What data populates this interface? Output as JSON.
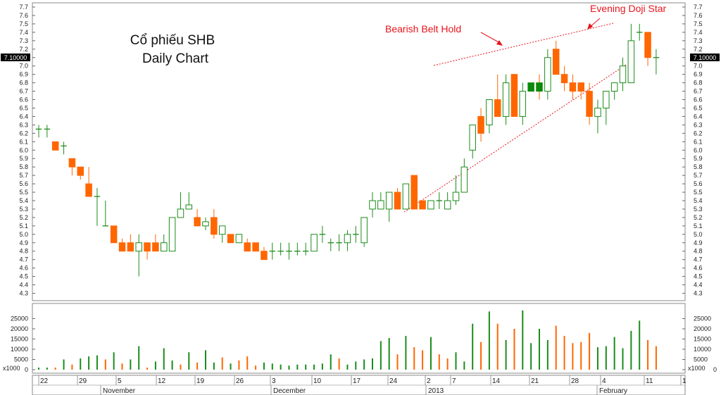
{
  "chart_data": [
    {
      "type": "candlestick",
      "title_line1": "Cổ phiếu SHB",
      "title_line2": "Daily Chart",
      "ylim": [
        4.2,
        7.75
      ],
      "y_ticks": [
        "4.3",
        "4.4",
        "4.5",
        "4.6",
        "4.7",
        "4.8",
        "4.9",
        "5.0",
        "5.1",
        "5.2",
        "5.3",
        "5.4",
        "5.5",
        "5.6",
        "5.7",
        "5.8",
        "5.9",
        "6.0",
        "6.1",
        "6.2",
        "6.3",
        "6.4",
        "6.5",
        "6.6",
        "6.7",
        "6.8",
        "6.9",
        "7.0",
        "7.1",
        "7.2",
        "7.3",
        "7.4",
        "7.5",
        "7.6",
        "7.7"
      ],
      "last_price_label": "7.10000",
      "last_price": 7.1,
      "colors": {
        "up": "#1a8c1a",
        "down": "#ff6600",
        "up_fill_special": "#0a8a0a",
        "annotation": "#e8141c"
      },
      "candles": [
        {
          "o": 6.25,
          "h": 6.3,
          "l": 6.15,
          "c": 6.25
        },
        {
          "o": 6.25,
          "h": 6.3,
          "l": 6.15,
          "c": 6.25
        },
        {
          "o": 6.1,
          "h": 6.1,
          "l": 6.0,
          "c": 6.0
        },
        {
          "o": 6.05,
          "h": 6.1,
          "l": 5.95,
          "c": 6.05
        },
        {
          "o": 5.9,
          "h": 5.9,
          "l": 5.7,
          "c": 5.8
        },
        {
          "o": 5.8,
          "h": 5.8,
          "l": 5.65,
          "c": 5.7
        },
        {
          "o": 5.6,
          "h": 5.8,
          "l": 5.45,
          "c": 5.45
        },
        {
          "o": 5.45,
          "h": 5.55,
          "l": 5.1,
          "c": 5.45
        },
        {
          "o": 5.1,
          "h": 5.4,
          "l": 5.1,
          "c": 5.1
        },
        {
          "o": 5.1,
          "h": 5.1,
          "l": 4.9,
          "c": 4.9
        },
        {
          "o": 4.9,
          "h": 4.95,
          "l": 4.8,
          "c": 4.8
        },
        {
          "o": 4.9,
          "h": 5.0,
          "l": 4.8,
          "c": 4.8
        },
        {
          "o": 4.8,
          "h": 5.0,
          "l": 4.5,
          "c": 4.9
        },
        {
          "o": 4.9,
          "h": 4.9,
          "l": 4.7,
          "c": 4.8
        },
        {
          "o": 4.9,
          "h": 5.0,
          "l": 4.8,
          "c": 4.8
        },
        {
          "o": 4.8,
          "h": 5.0,
          "l": 4.8,
          "c": 4.9
        },
        {
          "o": 4.8,
          "h": 5.2,
          "l": 4.8,
          "c": 5.2
        },
        {
          "o": 5.2,
          "h": 5.5,
          "l": 5.2,
          "c": 5.3
        },
        {
          "o": 5.3,
          "h": 5.5,
          "l": 5.3,
          "c": 5.35
        },
        {
          "o": 5.2,
          "h": 5.3,
          "l": 5.1,
          "c": 5.1
        },
        {
          "o": 5.1,
          "h": 5.2,
          "l": 5.05,
          "c": 5.15
        },
        {
          "o": 5.2,
          "h": 5.3,
          "l": 4.95,
          "c": 5.0
        },
        {
          "o": 5.0,
          "h": 5.1,
          "l": 4.9,
          "c": 5.1
        },
        {
          "o": 5.0,
          "h": 5.0,
          "l": 4.9,
          "c": 4.9
        },
        {
          "o": 4.9,
          "h": 5.0,
          "l": 4.9,
          "c": 5.0
        },
        {
          "o": 4.9,
          "h": 4.95,
          "l": 4.8,
          "c": 4.8
        },
        {
          "o": 4.9,
          "h": 4.9,
          "l": 4.8,
          "c": 4.8
        },
        {
          "o": 4.8,
          "h": 4.85,
          "l": 4.7,
          "c": 4.7
        },
        {
          "o": 4.8,
          "h": 4.9,
          "l": 4.7,
          "c": 4.8
        },
        {
          "o": 4.8,
          "h": 4.9,
          "l": 4.75,
          "c": 4.8
        },
        {
          "o": 4.8,
          "h": 4.9,
          "l": 4.7,
          "c": 4.8
        },
        {
          "o": 4.8,
          "h": 4.9,
          "l": 4.75,
          "c": 4.8
        },
        {
          "o": 4.8,
          "h": 4.9,
          "l": 4.75,
          "c": 4.8
        },
        {
          "o": 4.8,
          "h": 5.0,
          "l": 4.8,
          "c": 5.0
        },
        {
          "o": 5.0,
          "h": 5.1,
          "l": 4.9,
          "c": 5.0
        },
        {
          "o": 4.9,
          "h": 4.95,
          "l": 4.8,
          "c": 4.9
        },
        {
          "o": 4.9,
          "h": 5.0,
          "l": 4.8,
          "c": 4.9
        },
        {
          "o": 4.9,
          "h": 5.05,
          "l": 4.8,
          "c": 5.0
        },
        {
          "o": 5.0,
          "h": 5.1,
          "l": 4.9,
          "c": 5.0
        },
        {
          "o": 4.9,
          "h": 5.2,
          "l": 4.85,
          "c": 5.2
        },
        {
          "o": 5.3,
          "h": 5.5,
          "l": 5.2,
          "c": 5.4
        },
        {
          "o": 5.3,
          "h": 5.5,
          "l": 5.3,
          "c": 5.4
        },
        {
          "o": 5.3,
          "h": 5.5,
          "l": 5.15,
          "c": 5.5
        },
        {
          "o": 5.5,
          "h": 5.55,
          "l": 5.3,
          "c": 5.3
        },
        {
          "o": 5.3,
          "h": 5.6,
          "l": 5.3,
          "c": 5.6
        },
        {
          "o": 5.7,
          "h": 5.7,
          "l": 5.3,
          "c": 5.3
        },
        {
          "o": 5.4,
          "h": 5.4,
          "l": 5.3,
          "c": 5.3
        },
        {
          "o": 5.3,
          "h": 5.4,
          "l": 5.3,
          "c": 5.4
        },
        {
          "o": 5.4,
          "h": 5.5,
          "l": 5.3,
          "c": 5.4
        },
        {
          "o": 5.3,
          "h": 5.5,
          "l": 5.3,
          "c": 5.4
        },
        {
          "o": 5.4,
          "h": 5.7,
          "l": 5.35,
          "c": 5.5
        },
        {
          "o": 5.5,
          "h": 5.9,
          "l": 5.5,
          "c": 5.8
        },
        {
          "o": 6.0,
          "h": 6.3,
          "l": 5.9,
          "c": 6.3
        },
        {
          "o": 6.4,
          "h": 6.5,
          "l": 6.1,
          "c": 6.2
        },
        {
          "o": 6.3,
          "h": 6.6,
          "l": 6.2,
          "c": 6.6
        },
        {
          "o": 6.6,
          "h": 6.9,
          "l": 6.4,
          "c": 6.4
        },
        {
          "o": 6.4,
          "h": 6.9,
          "l": 6.3,
          "c": 6.8
        },
        {
          "o": 6.9,
          "h": 6.9,
          "l": 6.4,
          "c": 6.4
        },
        {
          "o": 6.4,
          "h": 6.8,
          "l": 6.3,
          "c": 6.7
        },
        {
          "o": 6.8,
          "h": 6.8,
          "l": 6.7,
          "c": 6.7,
          "solid": true
        },
        {
          "o": 6.8,
          "h": 6.9,
          "l": 6.6,
          "c": 6.7,
          "solid": true
        },
        {
          "o": 6.7,
          "h": 7.2,
          "l": 6.6,
          "c": 7.1
        },
        {
          "o": 7.2,
          "h": 7.3,
          "l": 6.9,
          "c": 6.9
        },
        {
          "o": 6.9,
          "h": 7.0,
          "l": 6.7,
          "c": 6.8
        },
        {
          "o": 6.8,
          "h": 6.9,
          "l": 6.6,
          "c": 6.7
        },
        {
          "o": 6.8,
          "h": 6.8,
          "l": 6.6,
          "c": 6.7
        },
        {
          "o": 6.7,
          "h": 6.8,
          "l": 6.3,
          "c": 6.4
        },
        {
          "o": 6.4,
          "h": 6.6,
          "l": 6.2,
          "c": 6.5
        },
        {
          "o": 6.5,
          "h": 6.7,
          "l": 6.3,
          "c": 6.7
        },
        {
          "o": 6.7,
          "h": 6.8,
          "l": 6.6,
          "c": 6.8
        },
        {
          "o": 6.8,
          "h": 7.1,
          "l": 6.7,
          "c": 7.0
        },
        {
          "o": 6.8,
          "h": 7.5,
          "l": 6.8,
          "c": 7.3
        },
        {
          "o": 7.4,
          "h": 7.5,
          "l": 7.3,
          "c": 7.4
        },
        {
          "o": 7.4,
          "h": 7.4,
          "l": 7.0,
          "c": 7.1
        },
        {
          "o": 7.1,
          "h": 7.2,
          "l": 6.9,
          "c": 7.1
        }
      ],
      "volume_axis_ticks": [
        "0",
        "5000",
        "10000",
        "15000",
        "20000",
        "25000"
      ],
      "volume_unit_label": "x1000",
      "volume": [
        1000,
        1000,
        1000,
        5000,
        2500,
        5500,
        6500,
        7000,
        5000,
        8500,
        3000,
        5000,
        11500,
        1000,
        4000,
        10500,
        4500,
        2500,
        8500,
        3500,
        9500,
        3500,
        6000,
        3000,
        4500,
        6500,
        2000,
        3500,
        3000,
        2500,
        2000,
        2500,
        2500,
        2500,
        3000,
        7500,
        5500,
        2500,
        4000,
        5000,
        5500,
        14000,
        15500,
        7500,
        16500,
        11000,
        9500,
        16000,
        7500,
        5500,
        8500,
        4000,
        22500,
        13500,
        28500,
        22500,
        14500,
        20000,
        29000,
        13000,
        20000,
        14500,
        21500,
        16500,
        13000,
        13500,
        18000,
        11000,
        11500,
        16000,
        10500,
        19000,
        24000,
        14500,
        11500
      ],
      "volume_directions": [
        "up",
        "up",
        "down",
        "up",
        "down",
        "up",
        "up",
        "up",
        "down",
        "up",
        "down",
        "up",
        "up",
        "down",
        "up",
        "up",
        "up",
        "down",
        "up",
        "down",
        "up",
        "up",
        "down",
        "up",
        "down",
        "down",
        "down",
        "up",
        "up",
        "up",
        "up",
        "up",
        "up",
        "up",
        "up",
        "up",
        "down",
        "up",
        "up",
        "up",
        "up",
        "up",
        "up",
        "down",
        "up",
        "down",
        "down",
        "up",
        "down",
        "down",
        "up",
        "up",
        "up",
        "down",
        "up",
        "down",
        "up",
        "down",
        "up",
        "up",
        "up",
        "up",
        "down",
        "down",
        "down",
        "down",
        "down",
        "up",
        "up",
        "up",
        "up",
        "up",
        "up",
        "down",
        "down"
      ],
      "x_tick_labels": [
        "22",
        "29",
        "5",
        "12",
        "19",
        "26",
        "3",
        "10",
        "17",
        "24",
        "2",
        "7",
        "14",
        "21",
        "28",
        "4",
        "11",
        "1"
      ],
      "month_labels": [
        "November",
        "December",
        "2013",
        "February"
      ],
      "annotations": [
        {
          "text": "Bearish Belt Hold"
        },
        {
          "text": "Evening Doji Star"
        }
      ]
    }
  ]
}
